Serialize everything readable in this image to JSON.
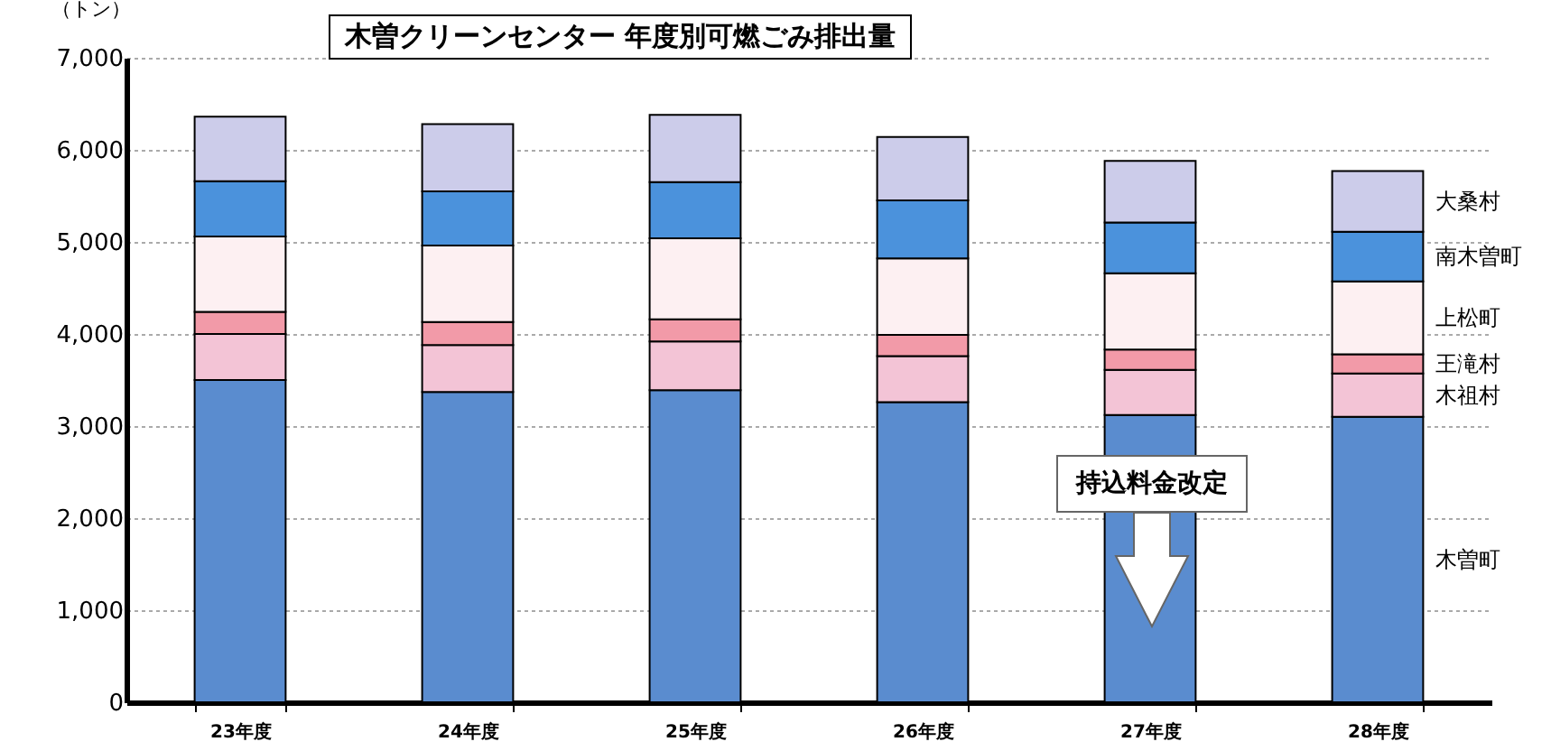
{
  "chart_data": {
    "type": "bar",
    "title": "木曽クリーンセンター 年度別可燃ごみ排出量",
    "ylabel": "（トン）",
    "categories": [
      "23年度",
      "24年度",
      "25年度",
      "26年度",
      "27年度",
      "28年度"
    ],
    "stacked": true,
    "series": [
      {
        "name": "木曽町",
        "color": "#5a8ccf",
        "values": [
          3500,
          3370,
          3390,
          3260,
          3120,
          3100
        ]
      },
      {
        "name": "木祖村",
        "color": "#f3c4d6",
        "values": [
          500,
          510,
          530,
          500,
          490,
          470
        ]
      },
      {
        "name": "王滝村",
        "color": "#f29aa8",
        "values": [
          240,
          250,
          240,
          230,
          220,
          210
        ]
      },
      {
        "name": "上松町",
        "color": "#fdf0f2",
        "values": [
          820,
          830,
          880,
          830,
          830,
          790
        ]
      },
      {
        "name": "南木曽町",
        "color": "#4b92dc",
        "values": [
          600,
          590,
          610,
          630,
          550,
          540
        ]
      },
      {
        "name": "大桑村",
        "color": "#ccccea",
        "values": [
          700,
          730,
          730,
          690,
          670,
          660
        ]
      }
    ],
    "ylim": [
      0,
      7000
    ],
    "yticks": [
      0,
      {
        "value": 1000,
        "label": "1,000"
      },
      {
        "value": 2000,
        "label": "2,000"
      },
      {
        "value": 3000,
        "label": "3,000"
      },
      {
        "value": 4000,
        "label": "4,000"
      },
      {
        "value": 5000,
        "label": "5,000"
      },
      {
        "value": 6000,
        "label": "6,000"
      },
      {
        "value": 7000,
        "label": "7,000"
      }
    ],
    "grid": "y",
    "legend": false,
    "annotations": [
      "持込料金改定"
    ]
  }
}
